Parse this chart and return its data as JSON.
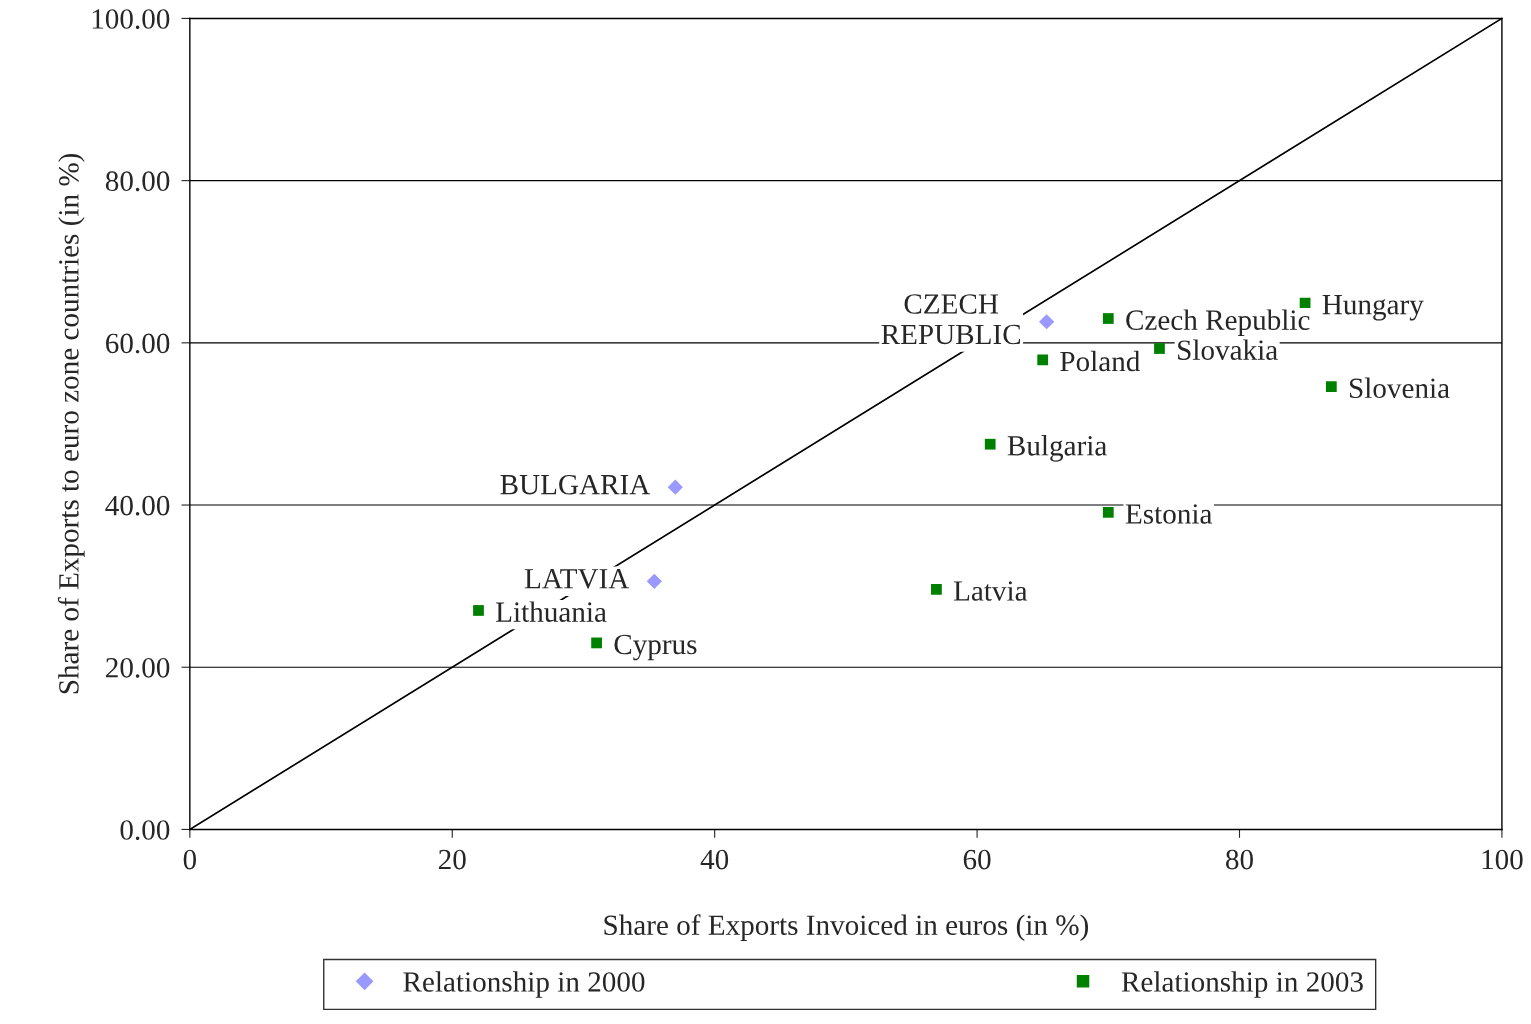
{
  "chart_data": {
    "type": "scatter",
    "xlabel": "Share of Exports Invoiced in euros (in %)",
    "ylabel": "Share of Exports to euro zone countries (in %)",
    "xlim": [
      0,
      100
    ],
    "xticks": [
      0,
      20,
      40,
      60,
      80,
      100
    ],
    "ylim": [
      0,
      100
    ],
    "yticks": [
      {
        "value": 0,
        "label": "0.00"
      },
      {
        "value": 20,
        "label": "20.00"
      },
      {
        "value": 40,
        "label": "40.00"
      },
      {
        "value": 60,
        "label": "60.00"
      },
      {
        "value": 80,
        "label": "80.00"
      },
      {
        "value": 100,
        "label": "100.00"
      }
    ],
    "grid": "y",
    "legend": "bottom",
    "series": [
      {
        "name": "Relationship in 2000",
        "marker": "diamond",
        "color": "#9999ff",
        "x": [
          65.3,
          37.0,
          35.4
        ],
        "values": [
          62.6,
          42.2,
          30.6
        ]
      },
      {
        "name": "Relationship in 2003",
        "marker": "square",
        "color": "#008000",
        "x": [
          85.0,
          70.0,
          73.9,
          65.0,
          87.0,
          61.0,
          70.0,
          56.9,
          22.0,
          31.0
        ],
        "values": [
          64.9,
          63.0,
          59.3,
          57.9,
          54.6,
          47.5,
          39.1,
          29.6,
          27.0,
          23.0
        ]
      },
      {
        "type": "line",
        "marker": "none",
        "color": "#000000",
        "x": [
          0,
          100
        ],
        "values": [
          0,
          100
        ]
      }
    ],
    "annotations": [
      {
        "text": "CZECH\nREPUBLIC",
        "x": 65.3,
        "y": 62.6
      },
      {
        "text": "BULGARIA",
        "x": 37.0,
        "y": 42.2
      },
      {
        "text": "LATVIA",
        "x": 35.4,
        "y": 30.6
      },
      {
        "text": "Hungary",
        "x": 85.0,
        "y": 64.9
      },
      {
        "text": "Czech Republic",
        "x": 70.0,
        "y": 63.0
      },
      {
        "text": "Slovakia",
        "x": 73.9,
        "y": 59.3
      },
      {
        "text": "Poland",
        "x": 65.0,
        "y": 57.9
      },
      {
        "text": "Slovenia",
        "x": 87.0,
        "y": 54.6
      },
      {
        "text": "Bulgaria",
        "x": 61.0,
        "y": 47.5
      },
      {
        "text": "Estonia",
        "x": 70.0,
        "y": 39.1
      },
      {
        "text": "Latvia",
        "x": 56.9,
        "y": 29.6
      },
      {
        "text": "Lithuania",
        "x": 22.0,
        "y": 27.0
      },
      {
        "text": "Cyprus",
        "x": 31.0,
        "y": 23.0
      }
    ]
  }
}
